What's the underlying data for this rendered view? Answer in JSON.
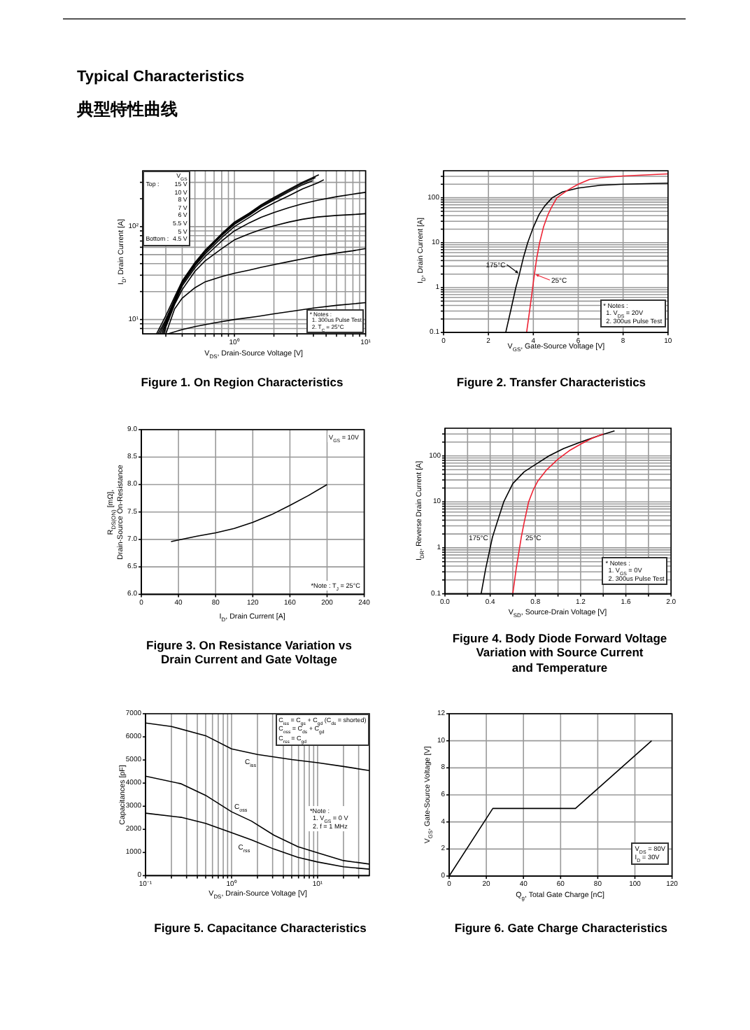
{
  "chart_data": [
    {
      "type": "other",
      "title": "Typical Characteristics",
      "subtitle": "典型特性曲线"
    },
    {
      "type": "line",
      "title": "Figure 1. On Region Characteristics",
      "xlabel": "V$_{DS}$, Drain-Source Voltage [V]",
      "ylabel": "I$_{D}$, Drain Current [A]",
      "log": "xy",
      "xlim": [
        0.2,
        10
      ],
      "xticks": [
        {
          "value": 0.3,
          "label": null
        },
        {
          "value": 0.4,
          "label": null
        },
        {
          "value": 0.5,
          "label": null
        },
        {
          "value": 0.6,
          "label": null
        },
        {
          "value": 0.7,
          "label": null
        },
        {
          "value": 0.8,
          "label": null
        },
        {
          "value": 0.9,
          "label": null
        },
        {
          "value": 1,
          "label": "10⁰"
        },
        {
          "value": 2,
          "label": null
        },
        {
          "value": 3,
          "label": null
        },
        {
          "value": 4,
          "label": null
        },
        {
          "value": 5,
          "label": null
        },
        {
          "value": 6,
          "label": null
        },
        {
          "value": 7,
          "label": null
        },
        {
          "value": 8,
          "label": null
        },
        {
          "value": 9,
          "label": null
        },
        {
          "value": 10,
          "label": "10¹"
        }
      ],
      "ylim": [
        7,
        400
      ],
      "yticks": [
        {
          "value": 8,
          "label": null
        },
        {
          "value": 9,
          "label": null
        },
        {
          "value": 10,
          "label": "10¹"
        },
        {
          "value": 20,
          "label": null
        },
        {
          "value": 30,
          "label": null
        },
        {
          "value": 40,
          "label": null
        },
        {
          "value": 50,
          "label": null
        },
        {
          "value": 60,
          "label": null
        },
        {
          "value": 70,
          "label": null
        },
        {
          "value": 80,
          "label": null
        },
        {
          "value": 90,
          "label": null
        },
        {
          "value": 100,
          "label": "10²"
        },
        {
          "value": 200,
          "label": null
        },
        {
          "value": 300,
          "label": null
        }
      ],
      "grid": true,
      "series": [
        {
          "color": "#000000",
          "x": [
            0.255,
            0.3,
            0.35,
            0.4,
            0.5,
            0.6,
            0.8,
            1,
            1.3,
            1.6,
            2,
            2.6,
            3.3,
            4.4
          ],
          "values": [
            7,
            11,
            17.5,
            26,
            41,
            56,
            84,
            112,
            140,
            172,
            206,
            252,
            300,
            362
          ]
        },
        {
          "color": "#000000",
          "x": [
            0.262,
            0.3,
            0.35,
            0.4,
            0.5,
            0.6,
            0.8,
            1,
            1.3,
            1.6,
            2,
            2.6,
            3.3,
            4.15
          ],
          "values": [
            7,
            10,
            16.5,
            25,
            40,
            54,
            82,
            109,
            137,
            168,
            200,
            245,
            292,
            338
          ]
        },
        {
          "color": "#000000",
          "x": [
            0.27,
            0.3,
            0.35,
            0.4,
            0.5,
            0.6,
            0.8,
            1,
            1.3,
            1.6,
            2,
            2.6,
            3.3,
            3.95
          ],
          "values": [
            7,
            9.6,
            16,
            24.5,
            39,
            53,
            80,
            106,
            133,
            163,
            194,
            237,
            282,
            312
          ]
        },
        {
          "color": "#000000",
          "x": [
            0.278,
            0.3,
            0.35,
            0.4,
            0.5,
            0.6,
            0.8,
            1,
            1.3,
            1.6,
            2,
            2.6,
            3.3,
            4.3,
            4.8
          ],
          "values": [
            7,
            9.2,
            15.5,
            24,
            38,
            51,
            76,
            100,
            126,
            152,
            180,
            215,
            255,
            295,
            320
          ]
        },
        {
          "color": "#000000",
          "x": [
            0.285,
            0.3,
            0.35,
            0.4,
            0.5,
            0.6,
            0.8,
            1,
            1.3,
            1.6,
            2,
            2.6,
            3.3,
            4.3,
            6,
            8,
            10
          ],
          "values": [
            7,
            8.8,
            15,
            23,
            36,
            48,
            70,
            90,
            110,
            126,
            142,
            160,
            176,
            192,
            210,
            224,
            234
          ]
        },
        {
          "color": "#000000",
          "x": [
            0.292,
            0.3,
            0.35,
            0.4,
            0.5,
            0.6,
            0.8,
            1,
            1.3,
            1.6,
            2,
            2.6,
            3.3,
            4.3,
            6,
            8,
            10
          ],
          "values": [
            7,
            8.3,
            14.5,
            21,
            33,
            43,
            58,
            72,
            84,
            93,
            102,
            112,
            120,
            127,
            132,
            135,
            138
          ]
        },
        {
          "color": "#000000",
          "x": [
            0.3,
            0.35,
            0.4,
            0.5,
            0.6,
            0.8,
            1,
            1.3,
            1.6,
            2,
            2.6,
            3.3,
            4.3,
            6,
            8,
            10
          ],
          "values": [
            7,
            13,
            17,
            22,
            25.5,
            29,
            31.5,
            34,
            36.5,
            39,
            42,
            45,
            48.5,
            52,
            55,
            58
          ]
        },
        {
          "color": "#000000",
          "x": [
            0.31,
            0.4,
            0.5,
            0.7,
            1,
            1.5,
            2,
            3,
            4,
            6,
            10
          ],
          "values": [
            7,
            7.8,
            8.4,
            9.2,
            10,
            10.8,
            11.5,
            12.5,
            13.3,
            14.2,
            15.2
          ]
        }
      ],
      "annotations": [
        "V$_{GS}$",
        "Top :",
        "15 V",
        "10 V",
        "8 V",
        "7 V",
        "6 V",
        "5.5 V",
        "5 V",
        "Bottom :",
        "4.5 V",
        "* Notes :",
        "1. 300us Pulse Test",
        "2. T$_{C}$ = 25°C"
      ]
    },
    {
      "type": "line",
      "title": "Figure 2. Transfer Characteristics",
      "xlabel": "V$_{GS}$, Gate-Source Voltage [V]",
      "ylabel": "I$_{D}$, Drain Current [A]",
      "log": "y",
      "xlim": [
        0,
        10
      ],
      "xticks": [
        0,
        2,
        4,
        6,
        8,
        10
      ],
      "ylim": [
        0.1,
        400
      ],
      "yticks": [
        0.1,
        {
          "value": 0.2,
          "label": null
        },
        {
          "value": 0.3,
          "label": null
        },
        {
          "value": 0.4,
          "label": null
        },
        {
          "value": 0.5,
          "label": null
        },
        {
          "value": 0.6,
          "label": null
        },
        {
          "value": 0.7,
          "label": null
        },
        {
          "value": 0.8,
          "label": null
        },
        {
          "value": 0.9,
          "label": null
        },
        1,
        {
          "value": 2,
          "label": null
        },
        {
          "value": 3,
          "label": null
        },
        {
          "value": 4,
          "label": null
        },
        {
          "value": 5,
          "label": null
        },
        {
          "value": 6,
          "label": null
        },
        {
          "value": 7,
          "label": null
        },
        {
          "value": 8,
          "label": null
        },
        {
          "value": 9,
          "label": null
        },
        10,
        {
          "value": 20,
          "label": null
        },
        {
          "value": 30,
          "label": null
        },
        {
          "value": 40,
          "label": null
        },
        {
          "value": 50,
          "label": null
        },
        {
          "value": 60,
          "label": null
        },
        {
          "value": 70,
          "label": null
        },
        {
          "value": 80,
          "label": null
        },
        {
          "value": 90,
          "label": null
        },
        100,
        {
          "value": 200,
          "label": null
        },
        {
          "value": 300,
          "label": null
        }
      ],
      "grid": true,
      "series": [
        {
          "name": "175°C",
          "color": "#000000",
          "x": [
            2.77,
            3.0,
            3.22,
            3.38,
            3.55,
            3.75,
            4.0,
            4.25,
            4.5,
            4.84,
            5.3,
            6,
            7,
            8,
            10
          ],
          "values": [
            0.1,
            0.32,
            1,
            2,
            4.5,
            10,
            22,
            42,
            65,
            100,
            135,
            165,
            190,
            200,
            212
          ]
        },
        {
          "name": "25°C",
          "color": "#ee2233",
          "x": [
            3.7,
            3.85,
            3.97,
            4.05,
            4.15,
            4.28,
            4.45,
            4.65,
            4.8,
            5.05,
            5.55,
            6,
            6.5,
            7,
            8,
            10
          ],
          "values": [
            0.1,
            0.35,
            1,
            2,
            4.5,
            10,
            22,
            42,
            60,
            100,
            150,
            200,
            255,
            280,
            305,
            340
          ]
        }
      ],
      "annotations": [
        "* Notes :",
        "1. V$_{DS}$ = 20V",
        "2. 300us Pulse Test"
      ]
    },
    {
      "type": "line",
      "title": "Figure 3. On Resistance Variation vs\nDrain Current and Gate Voltage",
      "xlabel": "I$_{D}$, Drain Current [A]",
      "ylabel": "R$_{DS(ON)}$ [mΩ],\nDrain-Source On-Resistance",
      "xlim": [
        0,
        240
      ],
      "xticks": [
        0,
        40,
        80,
        120,
        160,
        200,
        240
      ],
      "ylim": [
        6,
        9
      ],
      "yticks": [
        {
          "value": 6,
          "label": "6.0"
        },
        6.5,
        {
          "value": 7,
          "label": "7.0"
        },
        7.5,
        {
          "value": 8,
          "label": "8.0"
        },
        8.5,
        {
          "value": 9,
          "label": "9.0"
        }
      ],
      "grid": true,
      "series": [
        {
          "color": "#000000",
          "x": [
            32,
            40,
            60,
            80,
            100,
            120,
            140,
            160,
            180,
            200
          ],
          "values": [
            6.96,
            6.99,
            7.06,
            7.12,
            7.2,
            7.31,
            7.45,
            7.62,
            7.8,
            8.0
          ]
        }
      ],
      "annotations": [
        "V$_{GS}$ = 10V",
        "*Note : T$_{J}$ = 25°C"
      ]
    },
    {
      "type": "line",
      "title": "Figure 4. Body Diode Forward Voltage\nVariation with Source Current\nand Temperature",
      "xlabel": "V$_{SD}$, Source-Drain Voltage [V]",
      "ylabel": "I$_{DR}$, Reverse Drain Current [A]",
      "log": "y",
      "xlim": [
        0,
        2
      ],
      "xticks": [
        {
          "value": 0,
          "label": "0.0"
        },
        {
          "value": 0.2,
          "label": null
        },
        0.4,
        {
          "value": 0.6,
          "label": null
        },
        0.8,
        {
          "value": 1,
          "label": null
        },
        1.2,
        {
          "value": 1.4,
          "label": null
        },
        1.6,
        {
          "value": 1.8,
          "label": null
        },
        {
          "value": 2,
          "label": "2.0"
        }
      ],
      "ylim": [
        0.1,
        400
      ],
      "yticks": [
        0.1,
        {
          "value": 0.2,
          "label": null
        },
        {
          "value": 0.3,
          "label": null
        },
        {
          "value": 0.4,
          "label": null
        },
        {
          "value": 0.5,
          "label": null
        },
        {
          "value": 0.6,
          "label": null
        },
        {
          "value": 0.7,
          "label": null
        },
        {
          "value": 0.8,
          "label": null
        },
        {
          "value": 0.9,
          "label": null
        },
        1,
        {
          "value": 2,
          "label": null
        },
        {
          "value": 3,
          "label": null
        },
        {
          "value": 4,
          "label": null
        },
        {
          "value": 5,
          "label": null
        },
        {
          "value": 6,
          "label": null
        },
        {
          "value": 7,
          "label": null
        },
        {
          "value": 8,
          "label": null
        },
        {
          "value": 9,
          "label": null
        },
        10,
        {
          "value": 20,
          "label": null
        },
        {
          "value": 30,
          "label": null
        },
        {
          "value": 40,
          "label": null
        },
        {
          "value": 50,
          "label": null
        },
        {
          "value": 60,
          "label": null
        },
        {
          "value": 70,
          "label": null
        },
        {
          "value": 80,
          "label": null
        },
        {
          "value": 90,
          "label": null
        },
        100,
        {
          "value": 200,
          "label": null
        },
        {
          "value": 300,
          "label": null
        }
      ],
      "grid": true,
      "series": [
        {
          "name": "175°C",
          "color": "#000000",
          "x": [
            0.32,
            0.36,
            0.4,
            0.42,
            0.46,
            0.52,
            0.6,
            0.7,
            0.8,
            0.92,
            1.05,
            1.2,
            1.35,
            1.5
          ],
          "values": [
            0.1,
            0.35,
            1,
            1.7,
            3.5,
            10,
            25,
            45,
            65,
            100,
            145,
            200,
            270,
            350
          ]
        },
        {
          "name": "25°C",
          "color": "#ee2233",
          "x": [
            0.6,
            0.63,
            0.66,
            0.675,
            0.7,
            0.74,
            0.78,
            0.82,
            0.9,
            1.0,
            1.1,
            1.2,
            1.3,
            1.4
          ],
          "values": [
            0.1,
            0.35,
            1,
            1.7,
            3.5,
            10,
            18,
            28,
            50,
            85,
            130,
            180,
            240,
            300
          ]
        }
      ],
      "annotations": [
        "* Notes :",
        "1. V$_{GS}$ = 0V",
        "2. 300us Pulse Test"
      ]
    },
    {
      "type": "line",
      "title": "Figure 5. Capacitance Characteristics",
      "xlabel": "V$_{DS}$, Drain-Source Voltage [V]",
      "ylabel": "Capacitances [pF]",
      "log": "x",
      "xlim": [
        0.1,
        40
      ],
      "xticks": [
        {
          "value": 0.1,
          "label": "10⁻¹"
        },
        {
          "value": 0.2,
          "label": null
        },
        {
          "value": 0.3,
          "label": null
        },
        {
          "value": 0.4,
          "label": null
        },
        {
          "value": 0.5,
          "label": null
        },
        {
          "value": 0.6,
          "label": null
        },
        {
          "value": 0.7,
          "label": null
        },
        {
          "value": 0.8,
          "label": null
        },
        {
          "value": 0.9,
          "label": null
        },
        {
          "value": 1,
          "label": "10⁰"
        },
        {
          "value": 2,
          "label": null
        },
        {
          "value": 3,
          "label": null
        },
        {
          "value": 4,
          "label": null
        },
        {
          "value": 5,
          "label": null
        },
        {
          "value": 6,
          "label": null
        },
        {
          "value": 7,
          "label": null
        },
        {
          "value": 8,
          "label": null
        },
        {
          "value": 9,
          "label": null
        },
        {
          "value": 10,
          "label": "10¹"
        },
        {
          "value": 20,
          "label": null
        },
        {
          "value": 30,
          "label": null
        }
      ],
      "ylim": [
        0,
        7000
      ],
      "yticks": [
        0,
        1000,
        2000,
        3000,
        4000,
        5000,
        6000,
        7000
      ],
      "grid": "x",
      "series": [
        {
          "name": "C$_{iss}$",
          "color": "#000000",
          "x": [
            0.1,
            0.2,
            0.5,
            1,
            2,
            5,
            10,
            20,
            40
          ],
          "values": [
            6600,
            6450,
            6050,
            5480,
            5240,
            5020,
            4880,
            4720,
            4540
          ]
        },
        {
          "name": "C$_{oss}$",
          "color": "#000000",
          "x": [
            0.1,
            0.26,
            0.5,
            1,
            1.7,
            3.1,
            5.9,
            10,
            20,
            40
          ],
          "values": [
            4300,
            3970,
            3470,
            2760,
            2360,
            1750,
            1250,
            990,
            650,
            500
          ]
        },
        {
          "name": "C$_{rss}$",
          "color": "#000000",
          "x": [
            0.1,
            0.26,
            0.5,
            1,
            1.7,
            3.1,
            5.9,
            10,
            20,
            40
          ],
          "values": [
            2700,
            2520,
            2260,
            1860,
            1550,
            1150,
            790,
            590,
            380,
            280
          ]
        }
      ],
      "annotations": [
        "C$_{iss}$ = C$_{gs}$ + C$_{gd}$ (C$_{ds}$ = shorted)",
        "C$_{oss}$ = C$_{ds}$ + C$_{gd}$",
        "C$_{rss}$ = C$_{gd}$",
        "*Note :",
        "1. V$_{GS}$ = 0 V",
        "2. f = 1 MHz"
      ]
    },
    {
      "type": "line",
      "title": "Figure 6. Gate Charge Characteristics",
      "xlabel": "Q$_{g}$, Total Gate Charge [nC]",
      "ylabel": "V$_{GS}$, Gate-Source Voltage [V]",
      "xlim": [
        0,
        120
      ],
      "xticks": [
        0,
        20,
        40,
        60,
        80,
        100,
        120
      ],
      "ylim": [
        0,
        12
      ],
      "yticks": [
        0,
        2,
        4,
        6,
        8,
        10,
        12
      ],
      "grid": true,
      "series": [
        {
          "color": "#000000",
          "x": [
            0,
            23.5,
            68,
            109
          ],
          "values": [
            0,
            5,
            5,
            10
          ]
        }
      ],
      "annotations": [
        "V$_{DS}$ = 80V",
        "I$_{D}$ = 30V"
      ]
    }
  ]
}
